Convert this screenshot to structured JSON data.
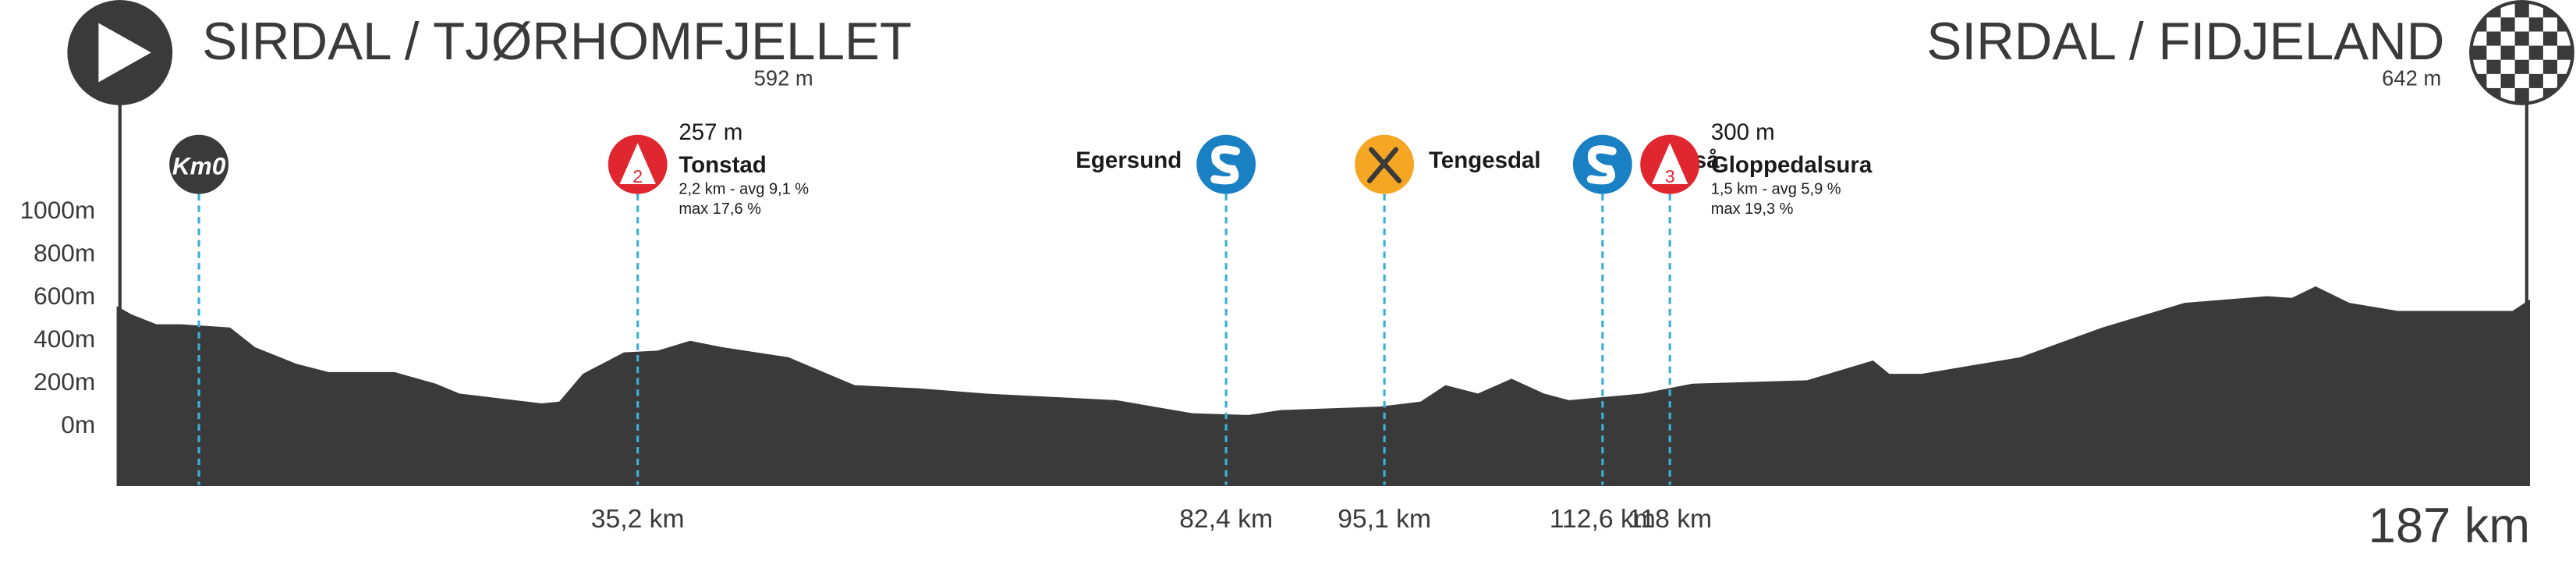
{
  "chart_data": {
    "type": "area",
    "start": {
      "name": "SIRDAL / TJØRHOMFJELLET",
      "elevation": "592 m"
    },
    "finish": {
      "name": "SIRDAL / FIDJELAND",
      "elevation": "642 m"
    },
    "distance_label": "187 km",
    "color": "#3a3a3a",
    "x": [
      -6.6,
      -5.4,
      -3.4,
      -1.4,
      2.5,
      4.5,
      7.8,
      10.4,
      15.7,
      19,
      20.9,
      27.5,
      28.9,
      30.8,
      34.1,
      36.8,
      39.4,
      42,
      47.3,
      52.6,
      57.8,
      63.1,
      73.6,
      79.7,
      84.2,
      86.8,
      94.7,
      98,
      100,
      102.6,
      105.3,
      107.9,
      109.9,
      115.8,
      119.8,
      129,
      134.3,
      135.6,
      138.2,
      146.1,
      152.7,
      159.3,
      165.9,
      167.9,
      169.8,
      172.5,
      176.4,
      185.6,
      187
    ],
    "series": [
      {
        "values": [
          554,
          515,
          469,
          469,
          454,
          362,
          285,
          246,
          246,
          192,
          146,
          100,
          108,
          238,
          338,
          346,
          392,
          362,
          315,
          185,
          170,
          146,
          115,
          54,
          46,
          69,
          85,
          108,
          185,
          146,
          215,
          146,
          115,
          146,
          192,
          208,
          300,
          238,
          238,
          315,
          454,
          569,
          600,
          592,
          646,
          569,
          531,
          531,
          585
        ]
      }
    ],
    "xlim": [
      -6.6,
      187
    ],
    "ylim": [
      -280,
      1000
    ],
    "yticks": [
      {
        "value": 1000,
        "label": "1000m"
      },
      {
        "value": 800,
        "label": "800m"
      },
      {
        "value": 600,
        "label": "600m"
      },
      {
        "value": 400,
        "label": "400m"
      },
      {
        "value": 200,
        "label": "200m"
      },
      {
        "value": 0,
        "label": "0m"
      }
    ],
    "marker_line_color": "#3ab0d8",
    "markers": [
      {
        "kind": "km0",
        "km": 0,
        "icon_text": "Km0"
      },
      {
        "kind": "climb",
        "km": 35.2,
        "km_label": "35,2 km",
        "category": "2",
        "elevation": "257 m",
        "name": "Tonstad",
        "details": [
          "2,2 km - avg 9,1 %",
          "max 17,6 %"
        ]
      },
      {
        "kind": "sprint",
        "km": 82.4,
        "km_label": "82,4 km",
        "name": "Egersund",
        "name_side": "left"
      },
      {
        "kind": "feed",
        "km": 95.1,
        "km_label": "95,1 km",
        "name": "Tengesdal",
        "name_side": "right"
      },
      {
        "kind": "sprint",
        "km": 112.6,
        "km_label": "112,6 km",
        "name": "Vikeså",
        "name_side": "right"
      },
      {
        "kind": "climb",
        "km": 118,
        "km_label": "118 km",
        "category": "3",
        "elevation": "300 m",
        "name": "Gloppedalsura",
        "details": [
          "1,5 km - avg 5,9 %",
          "max 19,3 %"
        ]
      }
    ]
  }
}
